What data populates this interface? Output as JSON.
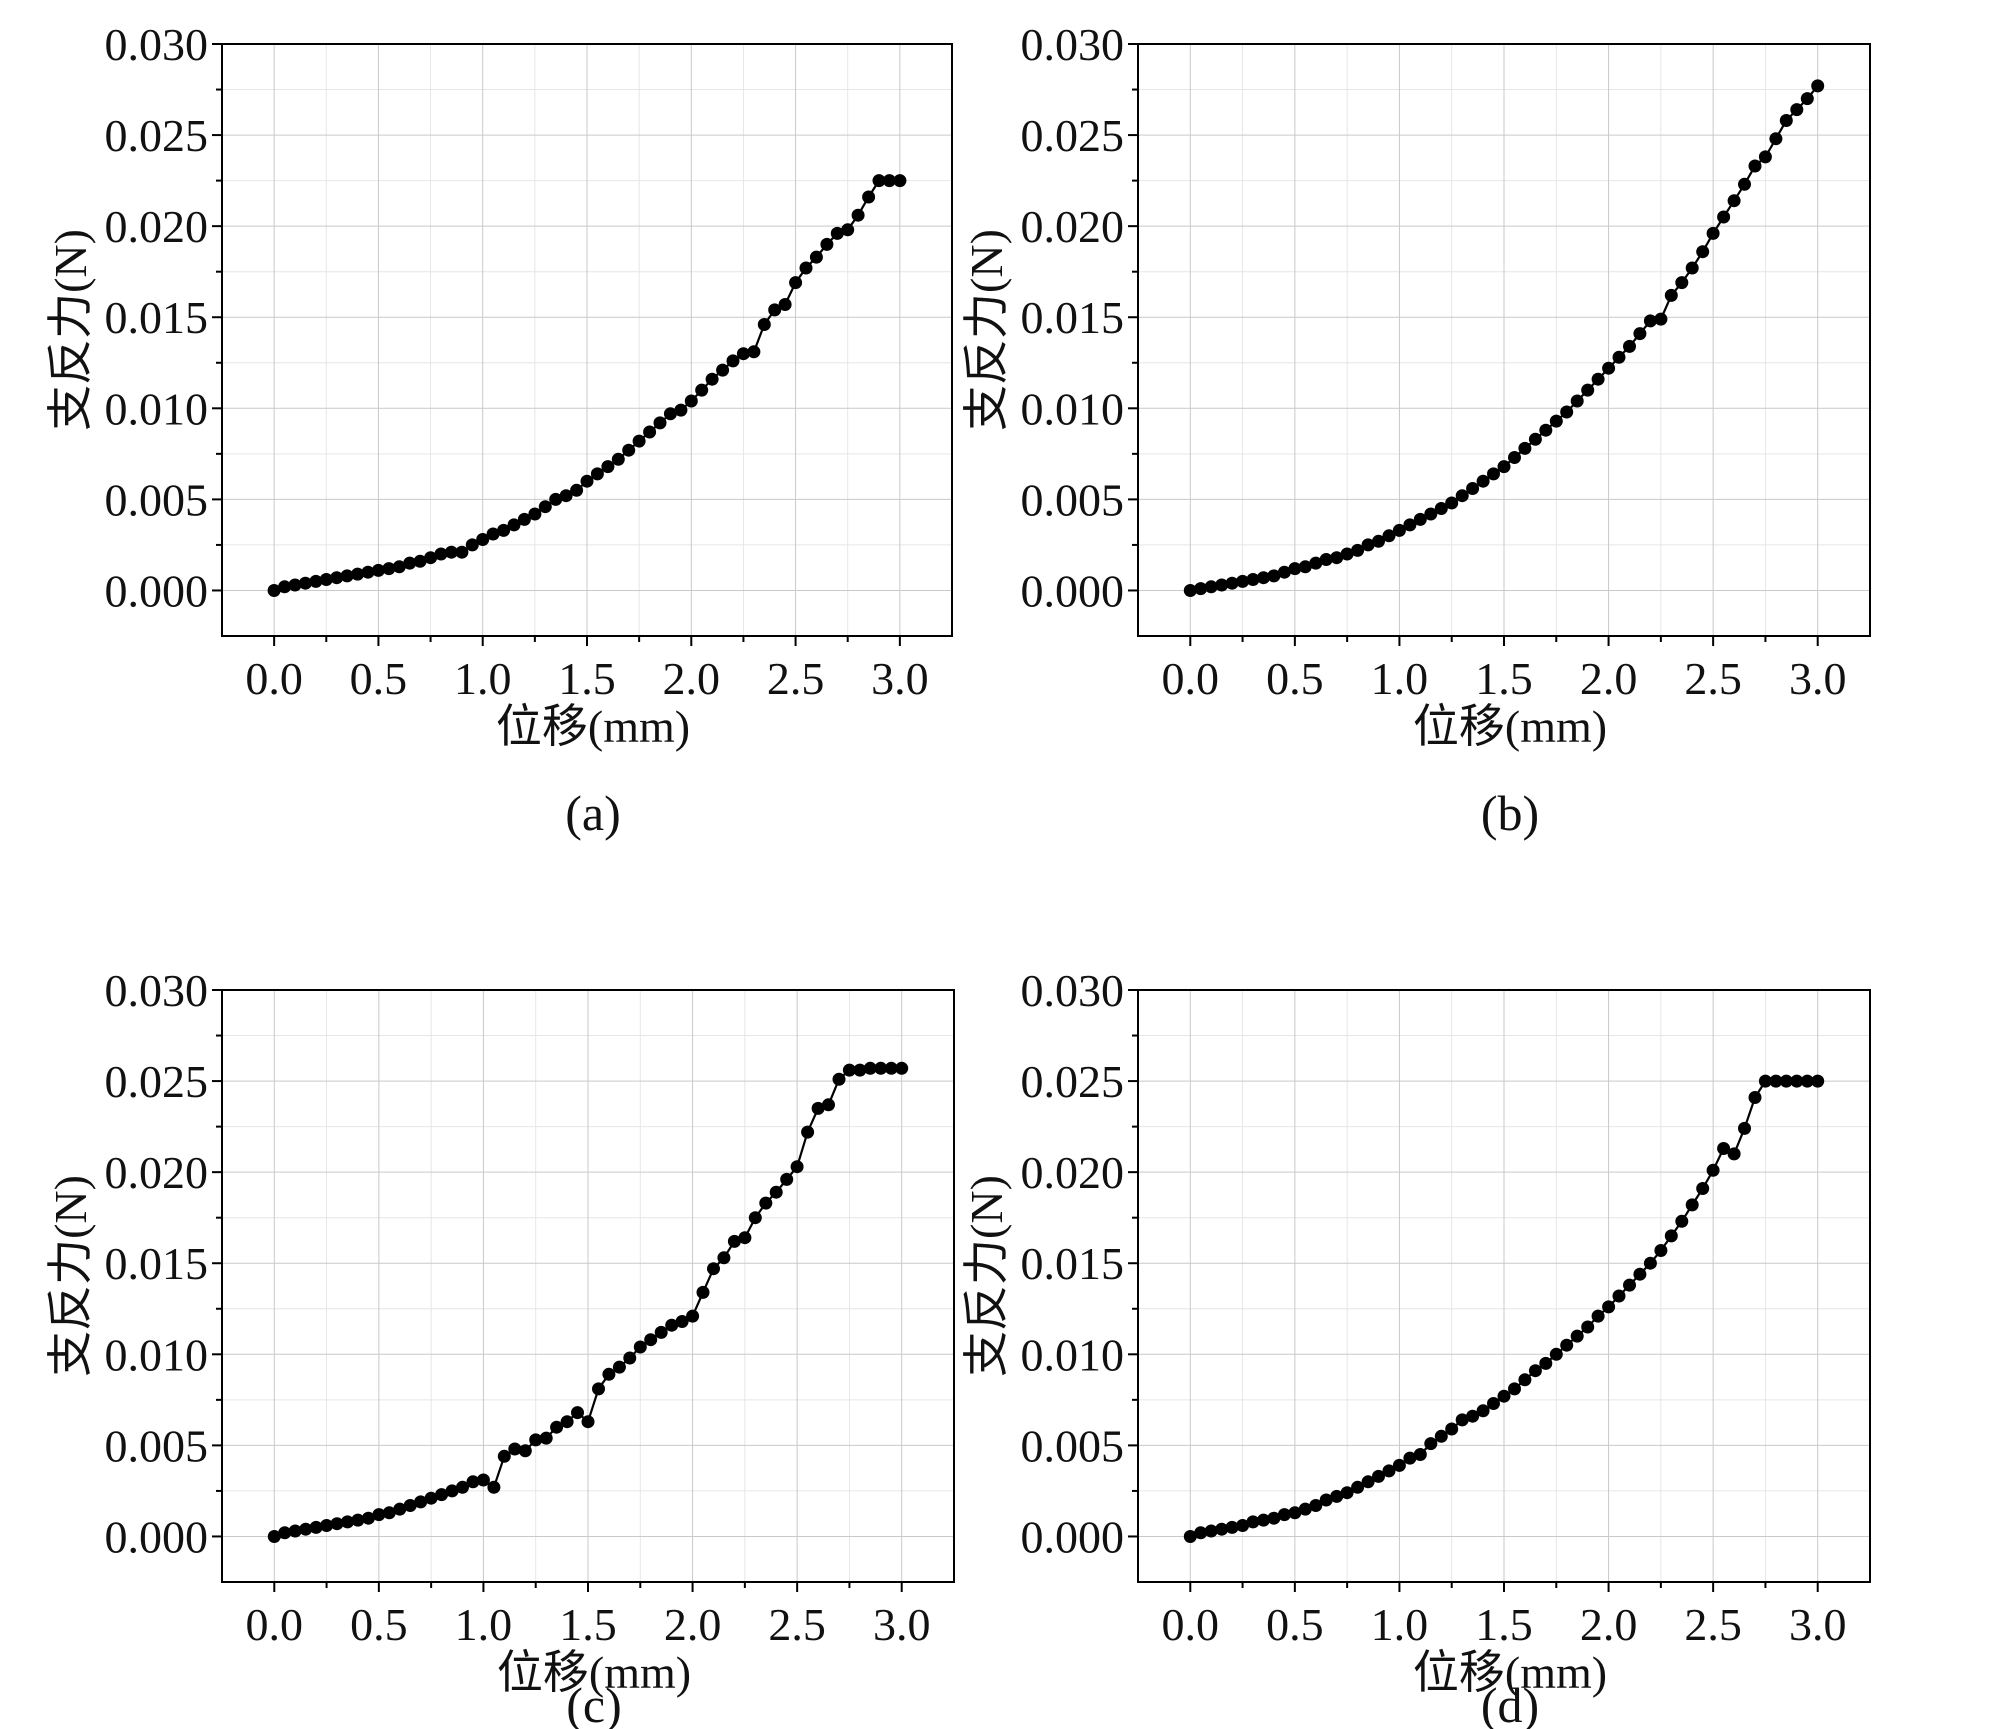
{
  "chart_data": [
    {
      "type": "line",
      "panel_label": "(a)",
      "xlabel": "位移(mm)",
      "ylabel": "支反力(N)",
      "xlim": [
        -0.25,
        3.25
      ],
      "ylim": [
        -0.0025,
        0.03
      ],
      "xticks": [
        "0.0",
        "0.5",
        "1.0",
        "1.5",
        "2.0",
        "2.5",
        "3.0"
      ],
      "yticks": [
        "0.000",
        "0.005",
        "0.010",
        "0.015",
        "0.020",
        "0.025",
        "0.030"
      ],
      "grid": true,
      "x": [
        0.0,
        0.05,
        0.1,
        0.15,
        0.2,
        0.25,
        0.3,
        0.35,
        0.4,
        0.45,
        0.5,
        0.55,
        0.6,
        0.65,
        0.7,
        0.75,
        0.8,
        0.85,
        0.9,
        0.95,
        1.0,
        1.05,
        1.1,
        1.15,
        1.2,
        1.25,
        1.3,
        1.35,
        1.4,
        1.45,
        1.5,
        1.55,
        1.6,
        1.65,
        1.7,
        1.75,
        1.8,
        1.85,
        1.9,
        1.95,
        2.0,
        2.05,
        2.1,
        2.15,
        2.2,
        2.25,
        2.3,
        2.35,
        2.4,
        2.45,
        2.5,
        2.55,
        2.6,
        2.65,
        2.7,
        2.75,
        2.8,
        2.85,
        2.9,
        2.95,
        3.0
      ],
      "y": [
        0.0,
        0.0002,
        0.0003,
        0.0004,
        0.0005,
        0.0006,
        0.0007,
        0.0008,
        0.0009,
        0.001,
        0.0011,
        0.0012,
        0.0013,
        0.0015,
        0.0016,
        0.0018,
        0.002,
        0.0021,
        0.0021,
        0.0025,
        0.0028,
        0.0031,
        0.0033,
        0.0036,
        0.0039,
        0.0042,
        0.0046,
        0.005,
        0.0052,
        0.0055,
        0.006,
        0.0064,
        0.0068,
        0.0072,
        0.0077,
        0.0082,
        0.0087,
        0.0092,
        0.0097,
        0.0099,
        0.0104,
        0.011,
        0.0116,
        0.0121,
        0.0126,
        0.013,
        0.0131,
        0.0146,
        0.0154,
        0.0157,
        0.0169,
        0.0177,
        0.0183,
        0.019,
        0.0196,
        0.0198,
        0.0206,
        0.0216,
        0.0225,
        0.0225,
        0.0225
      ]
    },
    {
      "type": "line",
      "panel_label": "(b)",
      "xlabel": "位移(mm)",
      "ylabel": "支反力(N)",
      "xlim": [
        -0.25,
        3.25
      ],
      "ylim": [
        -0.0025,
        0.03
      ],
      "xticks": [
        "0.0",
        "0.5",
        "1.0",
        "1.5",
        "2.0",
        "2.5",
        "3.0"
      ],
      "yticks": [
        "0.000",
        "0.005",
        "0.010",
        "0.015",
        "0.020",
        "0.025",
        "0.030"
      ],
      "grid": true,
      "x": [
        0.0,
        0.05,
        0.1,
        0.15,
        0.2,
        0.25,
        0.3,
        0.35,
        0.4,
        0.45,
        0.5,
        0.55,
        0.6,
        0.65,
        0.7,
        0.75,
        0.8,
        0.85,
        0.9,
        0.95,
        1.0,
        1.05,
        1.1,
        1.15,
        1.2,
        1.25,
        1.3,
        1.35,
        1.4,
        1.45,
        1.5,
        1.55,
        1.6,
        1.65,
        1.7,
        1.75,
        1.8,
        1.85,
        1.9,
        1.95,
        2.0,
        2.05,
        2.1,
        2.15,
        2.2,
        2.25,
        2.3,
        2.35,
        2.4,
        2.45,
        2.5,
        2.55,
        2.6,
        2.65,
        2.7,
        2.75,
        2.8,
        2.85,
        2.9,
        2.95,
        3.0
      ],
      "y": [
        0.0,
        0.0001,
        0.0002,
        0.0003,
        0.0004,
        0.0005,
        0.0006,
        0.0007,
        0.0008,
        0.001,
        0.0012,
        0.0013,
        0.0015,
        0.0017,
        0.0018,
        0.002,
        0.0022,
        0.0025,
        0.0027,
        0.003,
        0.0033,
        0.0036,
        0.0039,
        0.0042,
        0.0045,
        0.0048,
        0.0052,
        0.0056,
        0.006,
        0.0064,
        0.0068,
        0.0073,
        0.0078,
        0.0083,
        0.0088,
        0.0093,
        0.0098,
        0.0104,
        0.011,
        0.0116,
        0.0122,
        0.0128,
        0.0134,
        0.0141,
        0.0148,
        0.0149,
        0.0162,
        0.0169,
        0.0177,
        0.0186,
        0.0196,
        0.0205,
        0.0214,
        0.0223,
        0.0233,
        0.0238,
        0.0248,
        0.0258,
        0.0264,
        0.027,
        0.0277
      ]
    },
    {
      "type": "line",
      "panel_label": "(c)",
      "xlabel": "位移(mm)",
      "ylabel": "支反力(N)",
      "xlim": [
        -0.25,
        3.25
      ],
      "ylim": [
        -0.0025,
        0.03
      ],
      "xticks": [
        "0.0",
        "0.5",
        "1.0",
        "1.5",
        "2.0",
        "2.5",
        "3.0"
      ],
      "yticks": [
        "0.000",
        "0.005",
        "0.010",
        "0.015",
        "0.020",
        "0.025",
        "0.030"
      ],
      "grid": true,
      "x": [
        0.0,
        0.05,
        0.1,
        0.15,
        0.2,
        0.25,
        0.3,
        0.35,
        0.4,
        0.45,
        0.5,
        0.55,
        0.6,
        0.65,
        0.7,
        0.75,
        0.8,
        0.85,
        0.9,
        0.95,
        1.0,
        1.05,
        1.1,
        1.15,
        1.2,
        1.25,
        1.3,
        1.35,
        1.4,
        1.45,
        1.5,
        1.55,
        1.6,
        1.65,
        1.7,
        1.75,
        1.8,
        1.85,
        1.9,
        1.95,
        2.0,
        2.05,
        2.1,
        2.15,
        2.2,
        2.25,
        2.3,
        2.35,
        2.4,
        2.45,
        2.5,
        2.55,
        2.6,
        2.65,
        2.7,
        2.75,
        2.8,
        2.85,
        2.9,
        2.95,
        3.0
      ],
      "y": [
        0.0,
        0.0002,
        0.0003,
        0.0004,
        0.0005,
        0.0006,
        0.0007,
        0.0008,
        0.0009,
        0.001,
        0.0012,
        0.0013,
        0.0015,
        0.0017,
        0.0019,
        0.0021,
        0.0023,
        0.0025,
        0.0027,
        0.003,
        0.0031,
        0.0027,
        0.0044,
        0.0048,
        0.0047,
        0.0053,
        0.0054,
        0.006,
        0.0063,
        0.0068,
        0.0063,
        0.0081,
        0.0089,
        0.0093,
        0.0098,
        0.0104,
        0.0108,
        0.0112,
        0.0116,
        0.0118,
        0.0121,
        0.0134,
        0.0147,
        0.0153,
        0.0162,
        0.0164,
        0.0175,
        0.0183,
        0.0189,
        0.0196,
        0.0203,
        0.0222,
        0.0235,
        0.0237,
        0.0251,
        0.0256,
        0.0256,
        0.0257,
        0.0257,
        0.0257,
        0.0257
      ]
    },
    {
      "type": "line",
      "panel_label": "(d)",
      "xlabel": "位移(mm)",
      "ylabel": "支反力(N)",
      "xlim": [
        -0.25,
        3.25
      ],
      "ylim": [
        -0.0025,
        0.03
      ],
      "xticks": [
        "0.0",
        "0.5",
        "1.0",
        "1.5",
        "2.0",
        "2.5",
        "3.0"
      ],
      "yticks": [
        "0.000",
        "0.005",
        "0.010",
        "0.015",
        "0.020",
        "0.025",
        "0.030"
      ],
      "grid": true,
      "x": [
        0.0,
        0.05,
        0.1,
        0.15,
        0.2,
        0.25,
        0.3,
        0.35,
        0.4,
        0.45,
        0.5,
        0.55,
        0.6,
        0.65,
        0.7,
        0.75,
        0.8,
        0.85,
        0.9,
        0.95,
        1.0,
        1.05,
        1.1,
        1.15,
        1.2,
        1.25,
        1.3,
        1.35,
        1.4,
        1.45,
        1.5,
        1.55,
        1.6,
        1.65,
        1.7,
        1.75,
        1.8,
        1.85,
        1.9,
        1.95,
        2.0,
        2.05,
        2.1,
        2.15,
        2.2,
        2.25,
        2.3,
        2.35,
        2.4,
        2.45,
        2.5,
        2.55,
        2.6,
        2.65,
        2.7,
        2.75,
        2.8,
        2.85,
        2.9,
        2.95,
        3.0
      ],
      "y": [
        0.0,
        0.0002,
        0.0003,
        0.0004,
        0.0005,
        0.0006,
        0.0008,
        0.0009,
        0.001,
        0.0012,
        0.0013,
        0.0015,
        0.0017,
        0.002,
        0.0022,
        0.0024,
        0.0027,
        0.003,
        0.0033,
        0.0036,
        0.0039,
        0.0043,
        0.0045,
        0.0051,
        0.0055,
        0.0059,
        0.0064,
        0.0066,
        0.0069,
        0.0073,
        0.0077,
        0.0081,
        0.0086,
        0.0091,
        0.0095,
        0.01,
        0.0105,
        0.011,
        0.0115,
        0.0121,
        0.0126,
        0.0132,
        0.0138,
        0.0144,
        0.015,
        0.0157,
        0.0165,
        0.0173,
        0.0182,
        0.0191,
        0.0201,
        0.0213,
        0.021,
        0.0224,
        0.0241,
        0.025,
        0.025,
        0.025,
        0.025,
        0.025,
        0.025
      ]
    }
  ]
}
